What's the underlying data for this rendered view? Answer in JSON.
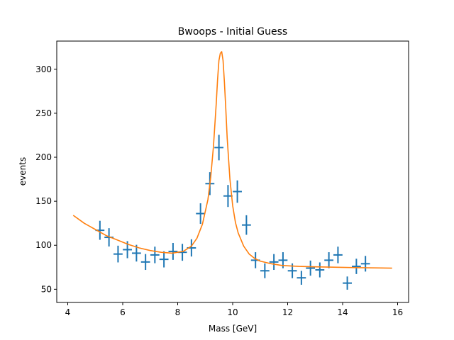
{
  "chart_data": {
    "type": "scatter",
    "title": "Bwoops - Initial Guess",
    "xlabel": "Mass [GeV]",
    "ylabel": "events",
    "xlim": [
      3.6,
      16.4
    ],
    "ylim": [
      35,
      332
    ],
    "xticks": [
      4,
      6,
      8,
      10,
      12,
      14,
      16
    ],
    "yticks": [
      50,
      100,
      150,
      200,
      250,
      300
    ],
    "grid": false,
    "colors": {
      "data": "#1f77b4",
      "model": "#ff7f0e"
    },
    "series": [
      {
        "kind": "errorbar",
        "x_halfwidth": 0.165,
        "x": [
          5.17,
          5.5,
          5.83,
          6.17,
          6.5,
          6.83,
          7.17,
          7.5,
          7.83,
          8.17,
          8.5,
          8.83,
          9.17,
          9.5,
          9.83,
          10.17,
          10.5,
          10.83,
          11.17,
          11.5,
          11.83,
          12.17,
          12.5,
          12.83,
          13.17,
          13.5,
          13.83,
          14.17,
          14.5,
          14.83
        ],
        "y": [
          117,
          109,
          90,
          95,
          91,
          81,
          89,
          84,
          93,
          92,
          97,
          136,
          170,
          211,
          156,
          161,
          123,
          83,
          71,
          81,
          83,
          71,
          63,
          74,
          72,
          83,
          89,
          57,
          76,
          79
        ],
        "yerr": [
          10.8,
          10.4,
          9.5,
          9.7,
          9.5,
          9.0,
          9.4,
          9.2,
          9.6,
          9.6,
          9.8,
          11.7,
          13.0,
          14.5,
          12.5,
          12.7,
          11.1,
          9.1,
          8.4,
          9.0,
          9.1,
          8.4,
          7.9,
          8.6,
          8.5,
          9.1,
          9.4,
          7.5,
          8.7,
          8.9
        ]
      },
      {
        "kind": "line",
        "x": [
          4.2,
          4.6,
          5.0,
          5.4,
          5.8,
          6.2,
          6.6,
          7.0,
          7.4,
          7.8,
          8.2,
          8.5,
          8.7,
          8.9,
          9.1,
          9.2,
          9.3,
          9.4,
          9.45,
          9.5,
          9.55,
          9.6,
          9.65,
          9.7,
          9.75,
          9.8,
          9.9,
          10.0,
          10.1,
          10.2,
          10.4,
          10.6,
          10.8,
          11.0,
          11.4,
          11.8,
          12.4,
          13.0,
          13.8,
          14.6,
          15.4,
          15.8
        ],
        "y": [
          134,
          125,
          118,
          111,
          106,
          101,
          97,
          94,
          92,
          91,
          93,
          99,
          108,
          124,
          152,
          177,
          212,
          260,
          288,
          310,
          318,
          320,
          310,
          285,
          255,
          222,
          175,
          145,
          126,
          114,
          99,
          90,
          85,
          82,
          79,
          77,
          76,
          75.5,
          75,
          74.5,
          74.2,
          74
        ]
      }
    ]
  }
}
